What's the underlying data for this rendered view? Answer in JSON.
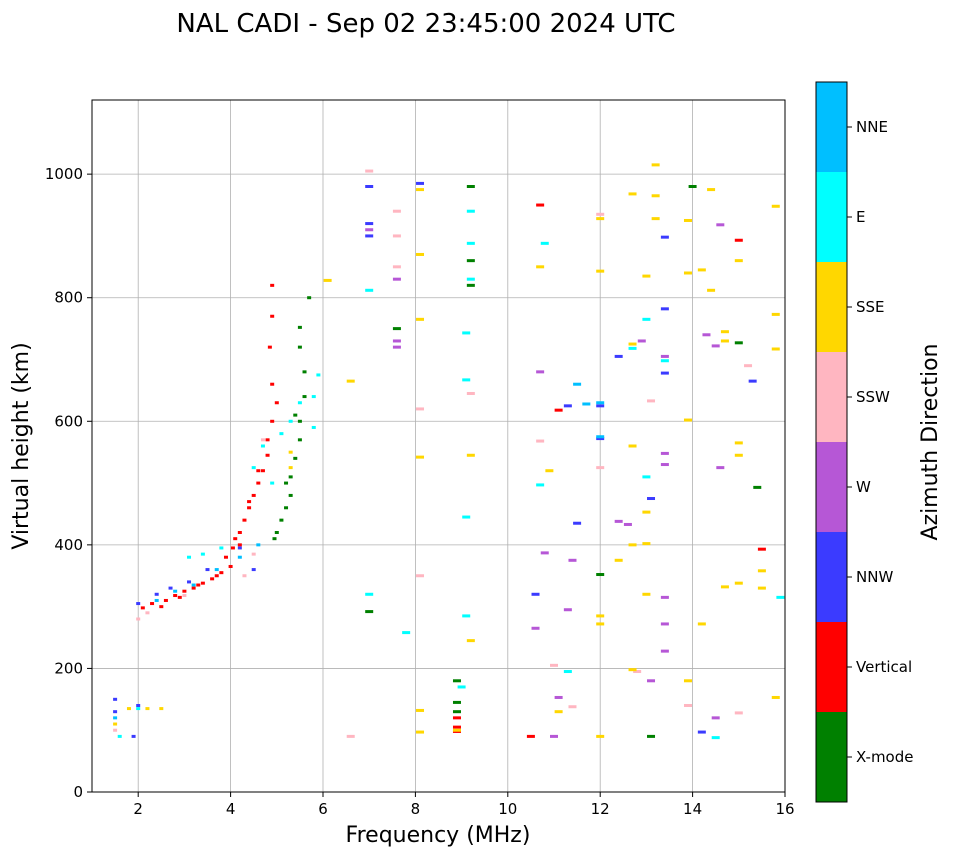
{
  "chart_data": {
    "type": "scatter",
    "title": "NAL CADI - Sep 02 23:45:00 2024 UTC",
    "xlabel": "Frequency (MHz)",
    "ylabel": "Virtual height (km)",
    "xlim": [
      1,
      16
    ],
    "ylim": [
      0,
      1120
    ],
    "xticks": [
      "2",
      "4",
      "6",
      "8",
      "10",
      "12",
      "14",
      "16"
    ],
    "xtick_values": [
      2,
      4,
      6,
      8,
      10,
      12,
      14,
      16
    ],
    "yticks": [
      "0",
      "200",
      "400",
      "600",
      "800",
      "1000"
    ],
    "ytick_values": [
      0,
      200,
      400,
      600,
      800,
      1000
    ],
    "grid": true,
    "colorbar": {
      "label": "Azimuth Direction",
      "categories": [
        {
          "name": "X-mode",
          "color": "#008000"
        },
        {
          "name": "Vertical",
          "color": "#ff0000"
        },
        {
          "name": "NNW",
          "color": "#3b3bff"
        },
        {
          "name": "W",
          "color": "#b657d6"
        },
        {
          "name": "SSW",
          "color": "#ffb6c1"
        },
        {
          "name": "SSE",
          "color": "#ffd700"
        },
        {
          "name": "E",
          "color": "#00ffff"
        },
        {
          "name": "NNE",
          "color": "#00bfff"
        }
      ]
    },
    "series": [
      {
        "name": "Vertical",
        "points": [
          [
            2.1,
            298
          ],
          [
            2.3,
            305
          ],
          [
            2.6,
            310
          ],
          [
            2.8,
            318
          ],
          [
            3.0,
            325
          ],
          [
            3.2,
            330
          ],
          [
            3.4,
            338
          ],
          [
            3.6,
            345
          ],
          [
            3.8,
            355
          ],
          [
            4.0,
            365
          ],
          [
            3.9,
            380
          ],
          [
            4.05,
            395
          ],
          [
            4.1,
            410
          ],
          [
            4.2,
            420
          ],
          [
            4.3,
            440
          ],
          [
            4.4,
            460
          ],
          [
            4.5,
            480
          ],
          [
            4.6,
            500
          ],
          [
            4.7,
            520
          ],
          [
            4.8,
            545
          ],
          [
            4.8,
            570
          ],
          [
            4.9,
            600
          ],
          [
            5.0,
            630
          ],
          [
            4.9,
            660
          ],
          [
            4.85,
            720
          ],
          [
            4.9,
            770
          ],
          [
            4.9,
            820
          ],
          [
            2.5,
            300
          ],
          [
            2.9,
            315
          ],
          [
            3.3,
            335
          ],
          [
            3.7,
            350
          ],
          [
            4.2,
            400
          ],
          [
            4.4,
            470
          ],
          [
            4.6,
            520
          ],
          [
            8.9,
            120
          ],
          [
            8.9,
            105
          ],
          [
            8.9,
            98
          ],
          [
            10.5,
            90
          ],
          [
            10.7,
            950
          ],
          [
            11.1,
            618
          ],
          [
            15.0,
            893
          ],
          [
            15.5,
            393
          ]
        ]
      },
      {
        "name": "X-mode",
        "points": [
          [
            5.0,
            420
          ],
          [
            5.1,
            440
          ],
          [
            5.2,
            460
          ],
          [
            5.3,
            480
          ],
          [
            5.3,
            510
          ],
          [
            5.4,
            540
          ],
          [
            5.5,
            570
          ],
          [
            5.5,
            600
          ],
          [
            5.6,
            640
          ],
          [
            5.6,
            680
          ],
          [
            5.5,
            720
          ],
          [
            5.5,
            752
          ],
          [
            5.7,
            800
          ],
          [
            4.95,
            410
          ],
          [
            5.2,
            500
          ],
          [
            5.4,
            610
          ],
          [
            7.0,
            292
          ],
          [
            7.6,
            750
          ],
          [
            8.9,
            180
          ],
          [
            8.9,
            145
          ],
          [
            8.9,
            130
          ],
          [
            9.2,
            860
          ],
          [
            9.2,
            820
          ],
          [
            9.2,
            980
          ],
          [
            12.0,
            352
          ],
          [
            13.1,
            90
          ],
          [
            14.0,
            980
          ],
          [
            15.0,
            727
          ],
          [
            15.4,
            493
          ]
        ]
      },
      {
        "name": "NNW",
        "points": [
          [
            1.5,
            150
          ],
          [
            1.5,
            130
          ],
          [
            1.9,
            90
          ],
          [
            2.0,
            140
          ],
          [
            2.0,
            305
          ],
          [
            2.4,
            320
          ],
          [
            2.7,
            330
          ],
          [
            3.1,
            340
          ],
          [
            3.5,
            360
          ],
          [
            4.2,
            395
          ],
          [
            4.5,
            360
          ],
          [
            7.0,
            980
          ],
          [
            7.0,
            920
          ],
          [
            7.0,
            900
          ],
          [
            8.1,
            985
          ],
          [
            10.6,
            320
          ],
          [
            11.3,
            625
          ],
          [
            11.5,
            435
          ],
          [
            12.0,
            625
          ],
          [
            12.0,
            572
          ],
          [
            12.4,
            705
          ],
          [
            13.1,
            475
          ],
          [
            13.4,
            898
          ],
          [
            13.4,
            782
          ],
          [
            13.4,
            678
          ],
          [
            14.2,
            97
          ],
          [
            15.3,
            665
          ]
        ]
      },
      {
        "name": "W",
        "points": [
          [
            7.0,
            910
          ],
          [
            7.6,
            830
          ],
          [
            7.6,
            730
          ],
          [
            7.6,
            720
          ],
          [
            10.6,
            265
          ],
          [
            10.7,
            680
          ],
          [
            10.8,
            387
          ],
          [
            11.0,
            90
          ],
          [
            11.1,
            153
          ],
          [
            11.3,
            295
          ],
          [
            11.4,
            375
          ],
          [
            12.4,
            438
          ],
          [
            12.6,
            433
          ],
          [
            12.9,
            730
          ],
          [
            13.1,
            180
          ],
          [
            13.4,
            705
          ],
          [
            13.4,
            548
          ],
          [
            13.4,
            530
          ],
          [
            13.4,
            315
          ],
          [
            13.4,
            272
          ],
          [
            13.4,
            228
          ],
          [
            14.3,
            740
          ],
          [
            14.5,
            722
          ],
          [
            14.5,
            120
          ],
          [
            14.6,
            918
          ],
          [
            14.6,
            525
          ]
        ]
      },
      {
        "name": "SSW",
        "points": [
          [
            1.5,
            100
          ],
          [
            2.0,
            280
          ],
          [
            2.2,
            290
          ],
          [
            3.0,
            318
          ],
          [
            4.3,
            350
          ],
          [
            4.5,
            385
          ],
          [
            4.7,
            570
          ],
          [
            6.6,
            90
          ],
          [
            7.0,
            1005
          ],
          [
            7.6,
            940
          ],
          [
            7.6,
            900
          ],
          [
            7.6,
            850
          ],
          [
            8.1,
            620
          ],
          [
            8.1,
            350
          ],
          [
            9.2,
            645
          ],
          [
            10.7,
            568
          ],
          [
            11.0,
            205
          ],
          [
            11.4,
            138
          ],
          [
            12.0,
            935
          ],
          [
            12.0,
            525
          ],
          [
            12.8,
            195
          ],
          [
            13.1,
            633
          ],
          [
            13.9,
            140
          ],
          [
            15.0,
            128
          ],
          [
            15.2,
            690
          ]
        ]
      },
      {
        "name": "SSE",
        "points": [
          [
            1.5,
            110
          ],
          [
            1.8,
            135
          ],
          [
            2.2,
            135
          ],
          [
            2.5,
            135
          ],
          [
            5.3,
            525
          ],
          [
            5.3,
            550
          ],
          [
            6.1,
            828
          ],
          [
            6.6,
            665
          ],
          [
            8.1,
            975
          ],
          [
            8.1,
            870
          ],
          [
            8.1,
            765
          ],
          [
            8.1,
            542
          ],
          [
            8.1,
            132
          ],
          [
            8.1,
            97
          ],
          [
            8.9,
            100
          ],
          [
            9.2,
            545
          ],
          [
            9.2,
            245
          ],
          [
            10.7,
            850
          ],
          [
            10.9,
            520
          ],
          [
            11.1,
            130
          ],
          [
            12.0,
            928
          ],
          [
            12.0,
            843
          ],
          [
            12.0,
            285
          ],
          [
            12.0,
            272
          ],
          [
            12.0,
            90
          ],
          [
            12.4,
            375
          ],
          [
            12.7,
            968
          ],
          [
            12.7,
            725
          ],
          [
            12.7,
            560
          ],
          [
            12.7,
            400
          ],
          [
            12.7,
            198
          ],
          [
            13.0,
            835
          ],
          [
            13.0,
            453
          ],
          [
            13.0,
            402
          ],
          [
            13.0,
            320
          ],
          [
            13.2,
            1015
          ],
          [
            13.2,
            965
          ],
          [
            13.2,
            928
          ],
          [
            13.9,
            925
          ],
          [
            13.9,
            840
          ],
          [
            13.9,
            602
          ],
          [
            13.9,
            180
          ],
          [
            14.2,
            845
          ],
          [
            14.2,
            272
          ],
          [
            14.4,
            812
          ],
          [
            14.4,
            975
          ],
          [
            14.7,
            745
          ],
          [
            14.7,
            730
          ],
          [
            14.7,
            332
          ],
          [
            15.0,
            860
          ],
          [
            15.0,
            565
          ],
          [
            15.0,
            545
          ],
          [
            15.0,
            338
          ],
          [
            15.5,
            358
          ],
          [
            15.5,
            330
          ],
          [
            15.8,
            948
          ],
          [
            15.8,
            773
          ],
          [
            15.8,
            717
          ],
          [
            15.8,
            153
          ]
        ]
      },
      {
        "name": "E",
        "points": [
          [
            1.6,
            90
          ],
          [
            2.0,
            135
          ],
          [
            3.1,
            380
          ],
          [
            3.4,
            385
          ],
          [
            3.8,
            395
          ],
          [
            4.5,
            525
          ],
          [
            4.7,
            560
          ],
          [
            4.9,
            500
          ],
          [
            5.1,
            580
          ],
          [
            5.3,
            600
          ],
          [
            5.5,
            630
          ],
          [
            5.8,
            640
          ],
          [
            5.9,
            675
          ],
          [
            5.8,
            590
          ],
          [
            7.0,
            320
          ],
          [
            7.0,
            812
          ],
          [
            7.8,
            258
          ],
          [
            9.0,
            170
          ],
          [
            9.2,
            940
          ],
          [
            9.2,
            888
          ],
          [
            9.2,
            830
          ],
          [
            9.1,
            667
          ],
          [
            9.1,
            743
          ],
          [
            9.1,
            445
          ],
          [
            9.1,
            285
          ],
          [
            10.7,
            497
          ],
          [
            10.8,
            888
          ],
          [
            11.3,
            195
          ],
          [
            12.7,
            718
          ],
          [
            13.0,
            765
          ],
          [
            13.0,
            510
          ],
          [
            13.4,
            698
          ],
          [
            14.5,
            88
          ],
          [
            15.9,
            315
          ]
        ]
      },
      {
        "name": "NNE",
        "points": [
          [
            1.5,
            120
          ],
          [
            2.4,
            310
          ],
          [
            2.8,
            325
          ],
          [
            3.2,
            335
          ],
          [
            3.7,
            360
          ],
          [
            4.2,
            380
          ],
          [
            4.6,
            400
          ],
          [
            11.5,
            660
          ],
          [
            11.7,
            628
          ],
          [
            12.0,
            630
          ],
          [
            12.0,
            575
          ]
        ]
      }
    ]
  }
}
